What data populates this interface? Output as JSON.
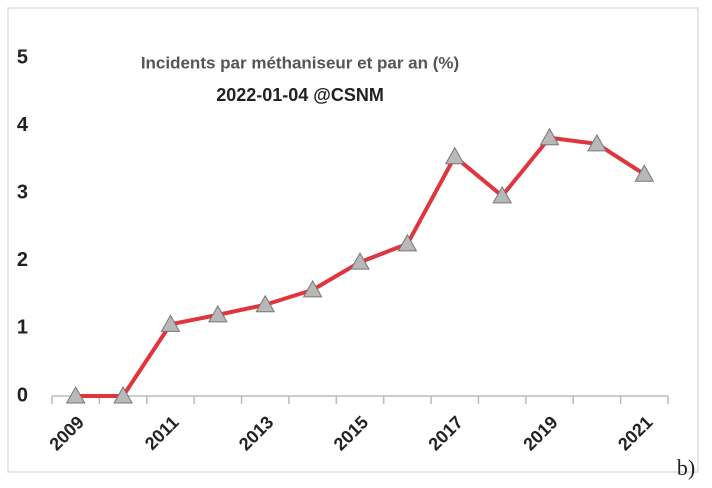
{
  "chart_data": {
    "type": "line",
    "title": "Incidents par méthaniseur et par an (%)",
    "subtitle": "2022-01-04 @CSNM",
    "annotation": "b)",
    "categories": [
      "2009",
      null,
      "2011",
      null,
      "2013",
      null,
      "2015",
      null,
      "2017",
      null,
      "2019",
      null,
      "2021"
    ],
    "series": [
      {
        "name": "Incidents",
        "color": "#e0353d",
        "values": [
          0,
          0,
          1.06,
          1.2,
          1.35,
          1.57,
          1.98,
          2.25,
          3.54,
          2.96,
          3.82,
          3.73,
          3.28
        ]
      }
    ],
    "ylim": [
      0,
      5
    ],
    "yticks": [
      0,
      1,
      2,
      3,
      4,
      5
    ],
    "grid": false
  }
}
